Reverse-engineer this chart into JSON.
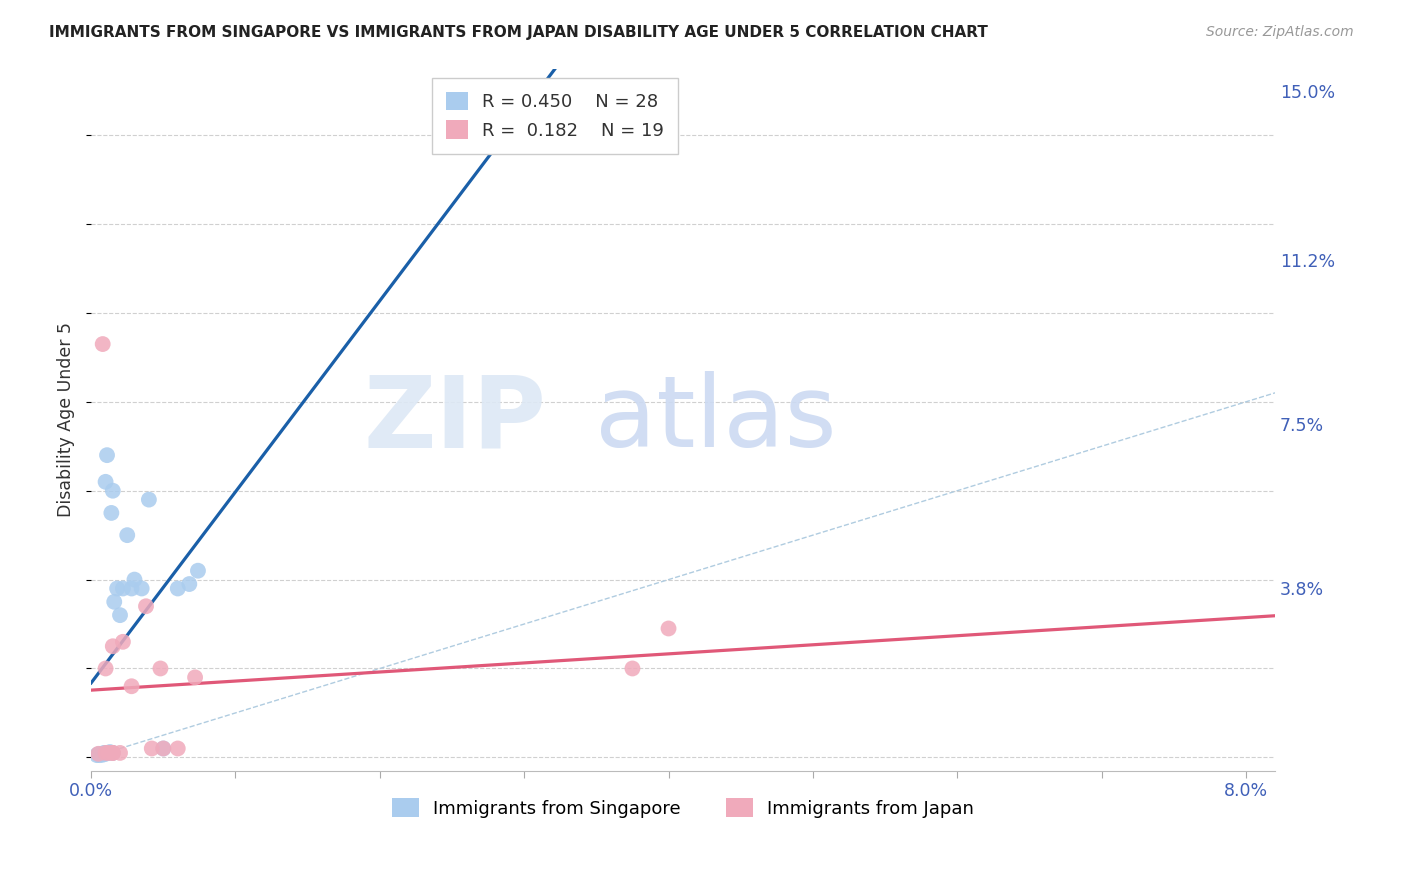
{
  "title": "IMMIGRANTS FROM SINGAPORE VS IMMIGRANTS FROM JAPAN DISABILITY AGE UNDER 5 CORRELATION CHART",
  "source": "Source: ZipAtlas.com",
  "ylabel": "Disability Age Under 5",
  "xlim": [
    0.0,
    0.082
  ],
  "ylim": [
    -0.003,
    0.155
  ],
  "xticks": [
    0.0,
    0.01,
    0.02,
    0.03,
    0.04,
    0.05,
    0.06,
    0.07,
    0.08
  ],
  "xtick_labels": [
    "0.0%",
    "",
    "",
    "",
    "",
    "",
    "",
    "",
    "8.0%"
  ],
  "yticks_right": [
    0.0,
    0.038,
    0.075,
    0.112,
    0.15
  ],
  "ytick_labels_right": [
    "",
    "3.8%",
    "7.5%",
    "11.2%",
    "15.0%"
  ],
  "singapore_R": 0.45,
  "singapore_N": 28,
  "japan_R": 0.182,
  "japan_N": 19,
  "singapore_color": "#aaccee",
  "singapore_line_color": "#1a5fa8",
  "japan_color": "#f0aabb",
  "japan_line_color": "#e05878",
  "diagonal_color": "#b0cce0",
  "sg_x": [
    0.0004,
    0.0005,
    0.0006,
    0.0007,
    0.0008,
    0.0009,
    0.001,
    0.001,
    0.001,
    0.0011,
    0.0012,
    0.0013,
    0.0014,
    0.0015,
    0.0015,
    0.0016,
    0.0018,
    0.002,
    0.0022,
    0.0025,
    0.0028,
    0.003,
    0.0035,
    0.004,
    0.005,
    0.006,
    0.0068,
    0.0074
  ],
  "sg_y": [
    0.0005,
    0.0007,
    0.0005,
    0.0008,
    0.0006,
    0.001,
    0.0008,
    0.001,
    0.062,
    0.068,
    0.001,
    0.0012,
    0.055,
    0.06,
    0.001,
    0.035,
    0.038,
    0.032,
    0.038,
    0.05,
    0.038,
    0.04,
    0.038,
    0.058,
    0.002,
    0.038,
    0.039,
    0.042
  ],
  "jp_x": [
    0.0005,
    0.0008,
    0.001,
    0.001,
    0.0012,
    0.0015,
    0.0015,
    0.0015,
    0.002,
    0.0022,
    0.0028,
    0.0038,
    0.0042,
    0.0048,
    0.005,
    0.006,
    0.0072,
    0.0375,
    0.04
  ],
  "jp_y": [
    0.0008,
    0.093,
    0.001,
    0.02,
    0.001,
    0.001,
    0.001,
    0.025,
    0.001,
    0.026,
    0.016,
    0.034,
    0.002,
    0.02,
    0.002,
    0.002,
    0.018,
    0.02,
    0.029
  ]
}
